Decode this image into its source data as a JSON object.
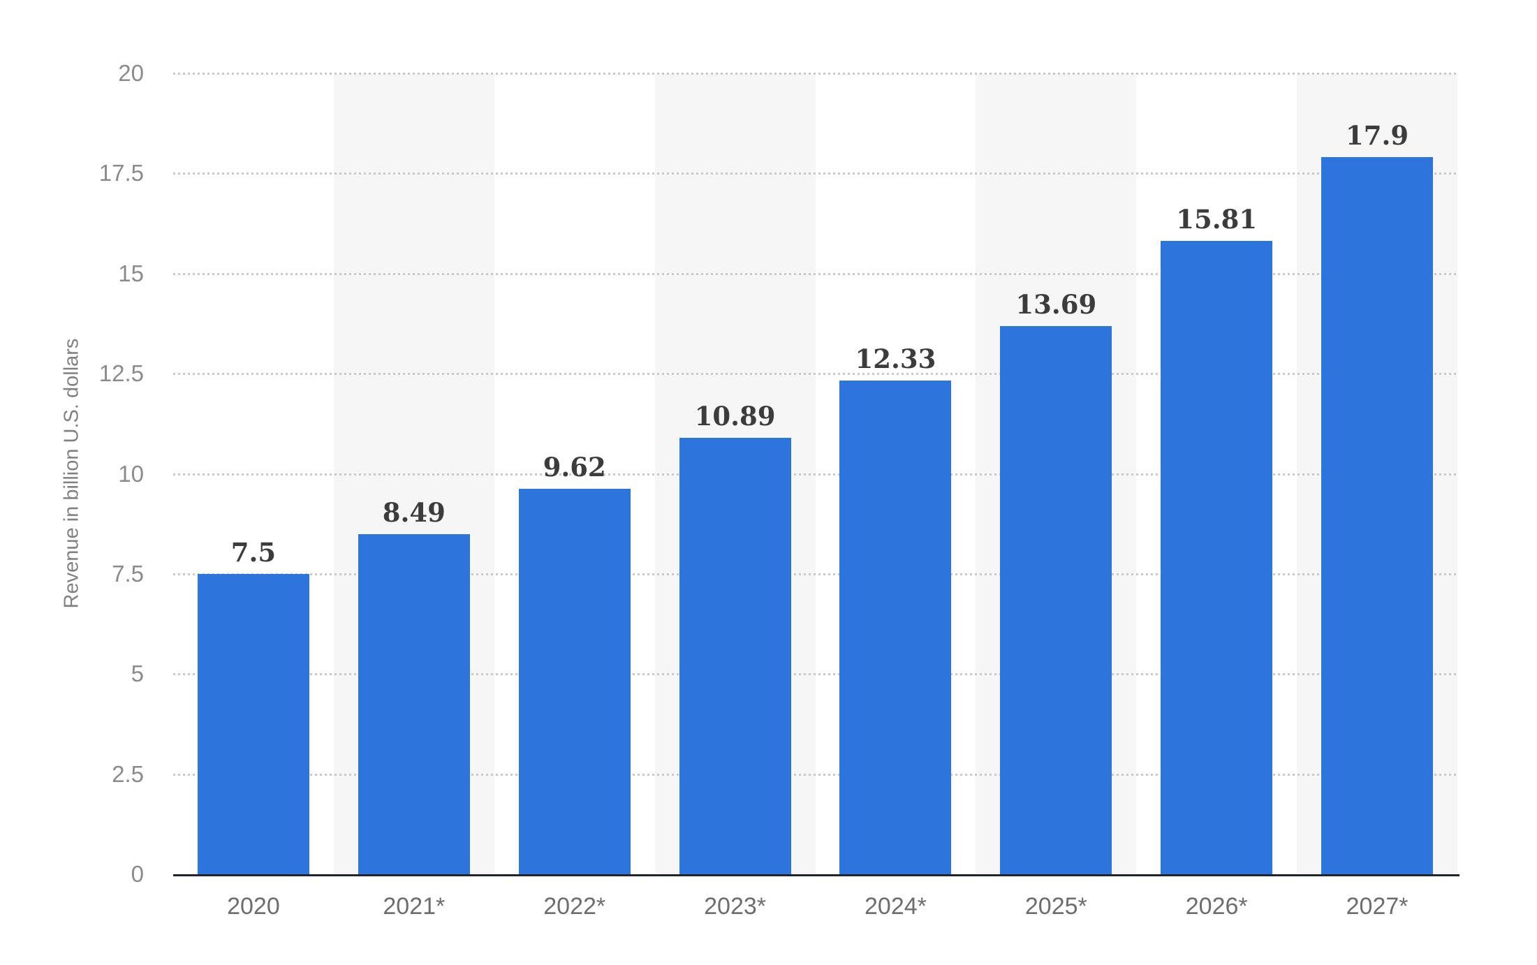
{
  "chart_data": {
    "type": "bar",
    "categories": [
      "2020",
      "2021*",
      "2022*",
      "2023*",
      "2024*",
      "2025*",
      "2026*",
      "2027*"
    ],
    "values": [
      7.5,
      8.49,
      9.62,
      10.89,
      12.33,
      13.69,
      15.81,
      17.9
    ],
    "value_labels": [
      "7.5",
      "8.49",
      "9.62",
      "10.89",
      "12.33",
      "13.69",
      "15.81",
      "17.9"
    ],
    "title": "",
    "xlabel": "",
    "ylabel": "Revenue in billion U.S. dollars",
    "ylim": [
      0,
      20
    ],
    "ytick_step": 2.5,
    "yticks": [
      "0",
      "2.5",
      "5",
      "7.5",
      "10",
      "12.5",
      "15",
      "17.5",
      "20"
    ],
    "grid": "horizontal-dotted",
    "legend": "none",
    "column_stripes": "alternating behind columns 2021*, 2023*, 2025*, 2027*",
    "colors": {
      "bar": "#2D74DC",
      "stripe": "#F6F6F6",
      "grid": "#C9C9C9",
      "axis": "#21252B",
      "value_label": "#3C3C3C",
      "y_tick_label": "#8B8B8B",
      "x_tick_label": "#6D6D6D",
      "axis_title": "#818181",
      "background": "#FFFFFF"
    }
  }
}
